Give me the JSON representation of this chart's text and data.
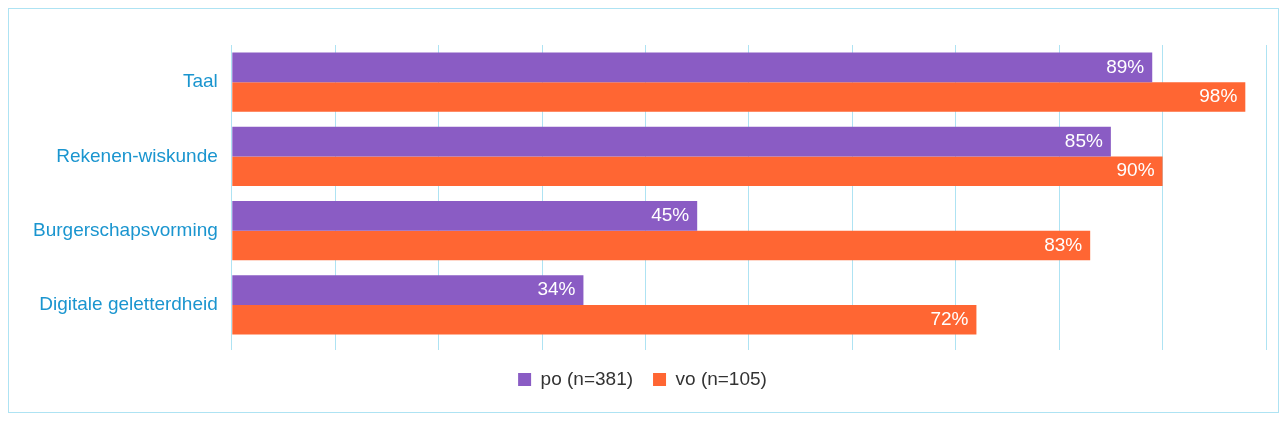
{
  "chart_data": {
    "type": "bar",
    "orientation": "horizontal",
    "categories": [
      "Taal",
      "Rekenen-wiskunde",
      "Burgerschapsvorming",
      "Digitale geletterdheid"
    ],
    "series": [
      {
        "name": "po (n=381)",
        "color": "#8a5cc4",
        "values": [
          89,
          85,
          45,
          34
        ],
        "value_labels": [
          "89%",
          "85%",
          "45%",
          "34%"
        ]
      },
      {
        "name": "vo (n=105)",
        "color": "#ff6633",
        "values": [
          98,
          90,
          83,
          72
        ],
        "value_labels": [
          "98%",
          "90%",
          "83%",
          "72%"
        ]
      }
    ],
    "xlim": [
      0,
      100
    ],
    "xticks": [
      {
        "value": 0,
        "label": null
      },
      {
        "value": 10,
        "label": null
      },
      {
        "value": 20,
        "label": null
      },
      {
        "value": 30,
        "label": null
      },
      {
        "value": 40,
        "label": null
      },
      {
        "value": 50,
        "label": null
      },
      {
        "value": 60,
        "label": null
      },
      {
        "value": 70,
        "label": null
      },
      {
        "value": 80,
        "label": null
      },
      {
        "value": 90,
        "label": null
      },
      {
        "value": 100,
        "label": null
      }
    ],
    "grid": "x",
    "tick_labels": "y",
    "legend": "bottom"
  }
}
